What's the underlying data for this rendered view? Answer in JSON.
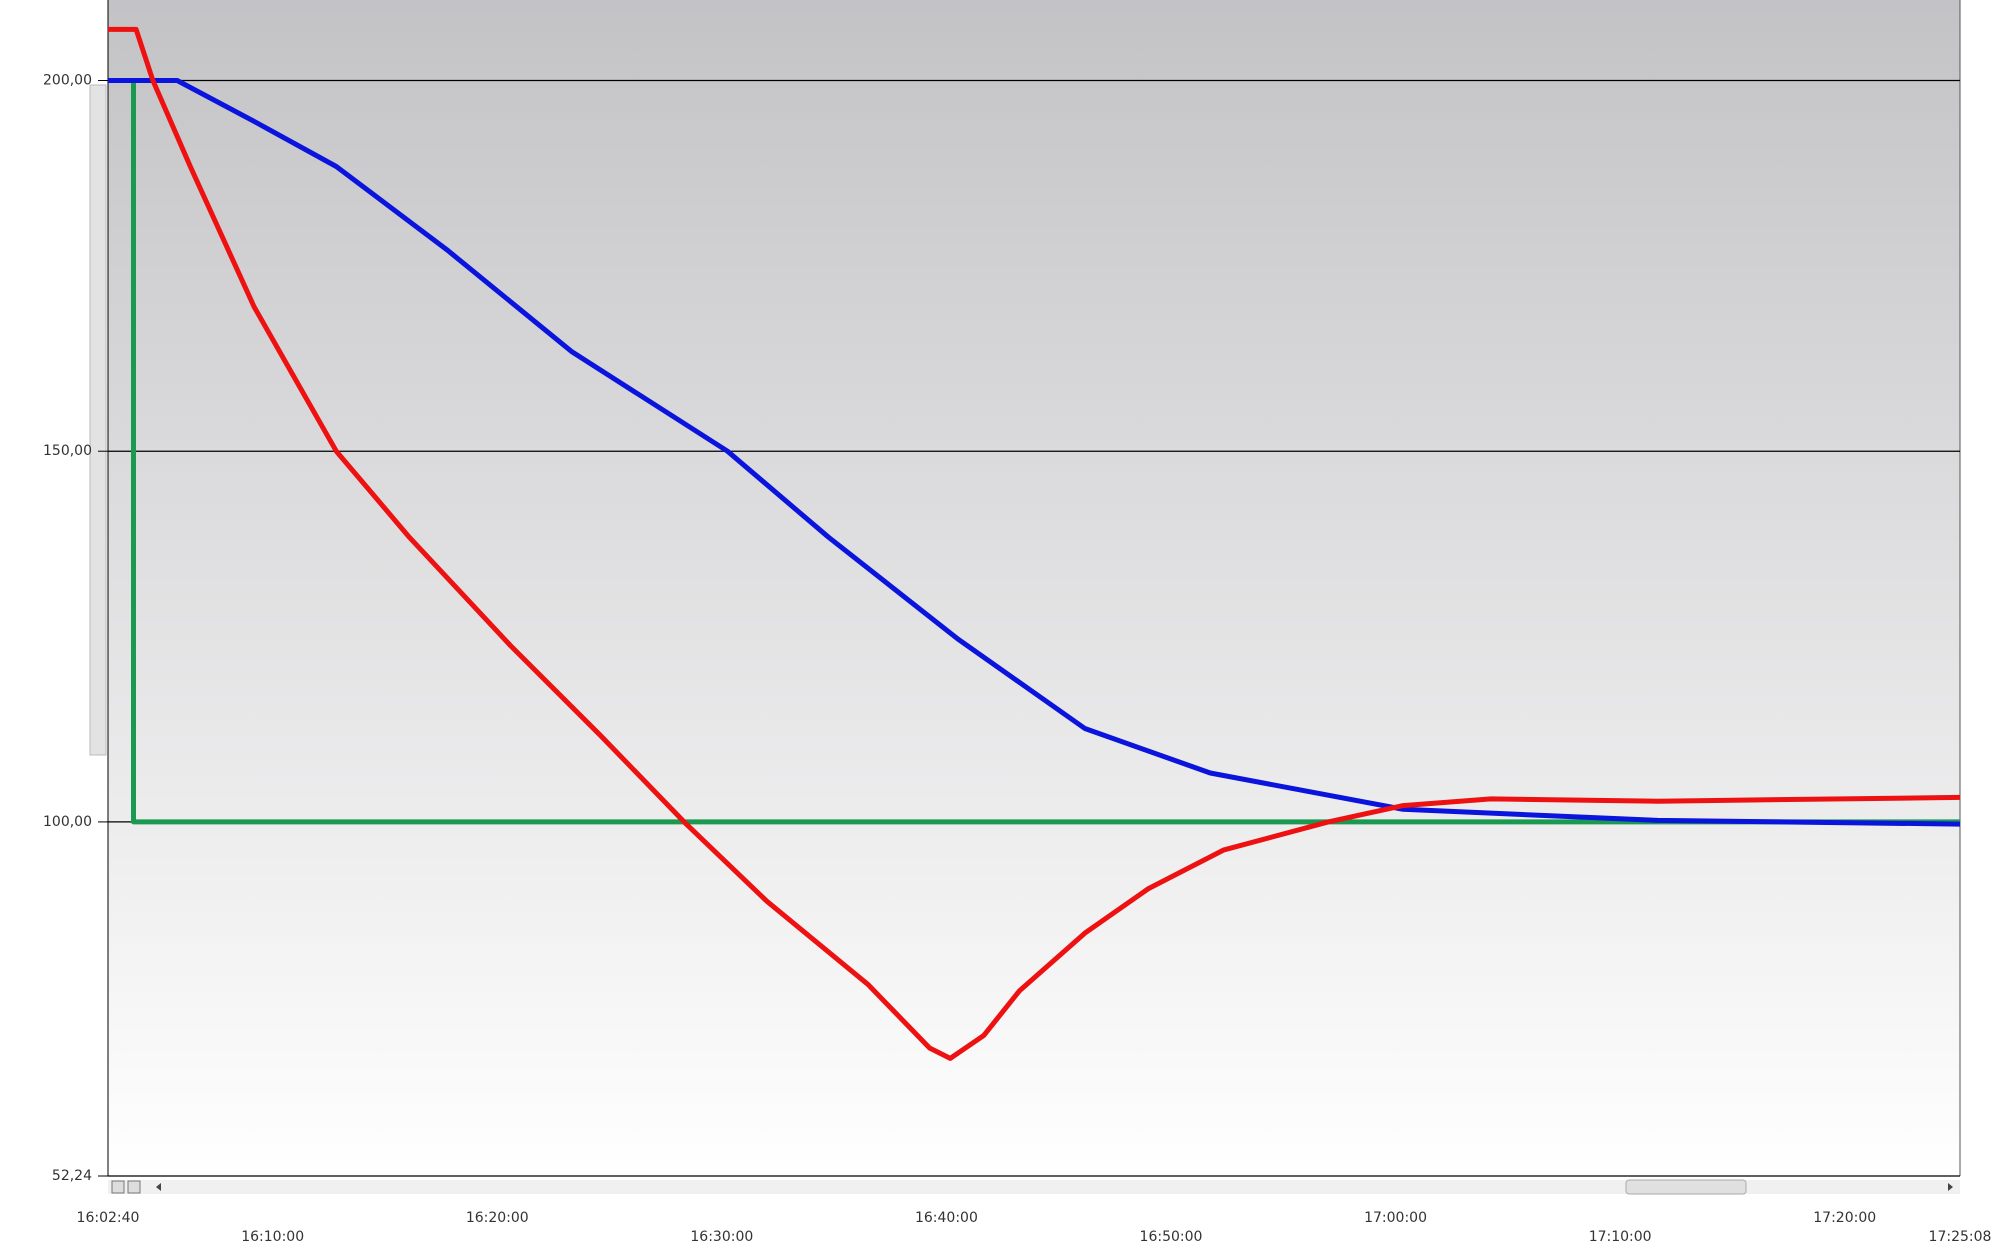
{
  "chart_data": {
    "type": "line",
    "xlim": [
      "16:02:40",
      "17:25:08"
    ],
    "xticks": [
      "16:02:40",
      "16:10:00",
      "16:20:00",
      "16:30:00",
      "16:40:00",
      "16:50:00",
      "17:00:00",
      "17:10:00",
      "17:20:00",
      "17:25:08"
    ],
    "ylim": [
      52.24,
      210.86
    ],
    "yticks": [
      {
        "value": 52.24,
        "label": "52,24"
      },
      {
        "value": 100,
        "label": "100,00"
      },
      {
        "value": 150,
        "label": "150,00"
      },
      {
        "value": 200,
        "label": "200,00"
      }
    ],
    "grid": true,
    "series": [
      {
        "color": "#ee1111",
        "x": [
          "16:02:40",
          "16:03:55",
          "16:04:40",
          "16:06:20",
          "16:09:10",
          "16:12:50",
          "16:16:05",
          "16:20:35",
          "16:24:35",
          "16:28:25",
          "16:32:00",
          "16:36:30",
          "16:39:15",
          "16:40:10",
          "16:41:40",
          "16:43:15",
          "16:46:10",
          "16:49:00",
          "16:52:20",
          "16:57:00",
          "17:00:20",
          "17:04:15",
          "17:11:40",
          "17:25:08"
        ],
        "values": [
          206.9,
          206.9,
          200,
          188.4,
          169.5,
          150,
          138.4,
          123.8,
          111.7,
          99.7,
          89.3,
          78.1,
          69.5,
          68.1,
          71.2,
          77.2,
          85,
          91,
          96.2,
          100,
          102.2,
          103.1,
          102.8,
          103.3
        ]
      },
      {
        "color": "#0a14dd",
        "x": [
          "16:02:40",
          "16:05:45",
          "16:09:10",
          "16:12:50",
          "16:17:45",
          "16:23:20",
          "16:30:15",
          "16:34:45",
          "16:40:30",
          "16:46:10",
          "16:51:45",
          "17:00:20",
          "17:11:40",
          "17:25:08"
        ],
        "values": [
          200,
          200,
          194.5,
          188.4,
          177.2,
          163.4,
          150,
          138.4,
          124.7,
          112.6,
          106.6,
          101.7,
          100.2,
          99.7
        ]
      },
      {
        "color": "#1a9950",
        "x": [
          "16:02:40",
          "16:03:48",
          "16:03:48",
          "17:25:08"
        ],
        "values": [
          200,
          200,
          100,
          100
        ]
      }
    ]
  }
}
